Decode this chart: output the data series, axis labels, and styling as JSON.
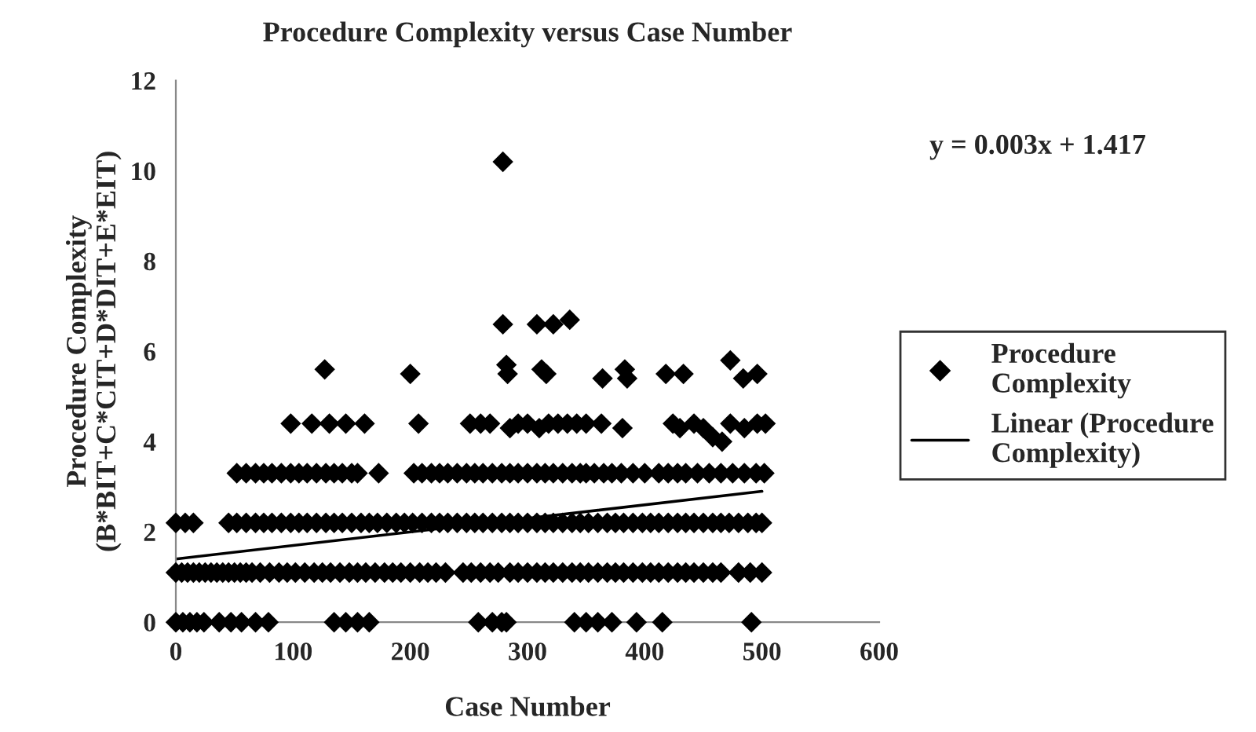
{
  "chart_data": {
    "type": "scatter",
    "title": "Procedure Complexity versus Case Number",
    "xlabel": "Case Number",
    "ylabel": "Procedure Complexity\n(B*BIT+C*CIT+D*DIT+E*EIT)",
    "xlim": [
      0,
      600
    ],
    "xticks": [
      0,
      100,
      200,
      300,
      400,
      500,
      600
    ],
    "ylim": [
      0,
      12
    ],
    "yticks": [
      0,
      2,
      4,
      6,
      8,
      10,
      12
    ],
    "grid": false,
    "legend": "right",
    "annotations": [
      "y = 0.003x + 1.417"
    ],
    "series": [
      {
        "name": "Procedure Complexity",
        "color": "#000000",
        "marker": "diamond",
        "x": [
          0,
          6,
          12,
          18,
          24,
          37,
          47,
          56,
          68,
          79,
          135,
          145,
          155,
          165,
          258,
          270,
          278,
          282,
          340,
          350,
          360,
          372,
          393,
          415,
          491,
          0,
          5,
          10,
          15,
          20,
          25,
          30,
          35,
          40,
          45,
          50,
          55,
          60,
          65,
          72,
          80,
          88,
          95,
          102,
          110,
          118,
          125,
          132,
          140,
          148,
          155,
          162,
          170,
          178,
          185,
          192,
          200,
          208,
          215,
          222,
          230,
          245,
          252,
          260,
          268,
          275,
          285,
          292,
          300,
          308,
          315,
          322,
          330,
          338,
          345,
          352,
          360,
          368,
          375,
          382,
          390,
          398,
          405,
          412,
          420,
          428,
          435,
          442,
          450,
          458,
          465,
          480,
          490,
          500,
          0,
          8,
          15,
          45,
          52,
          60,
          68,
          75,
          82,
          90,
          98,
          105,
          112,
          120,
          128,
          135,
          142,
          150,
          158,
          165,
          172,
          180,
          188,
          195,
          202,
          210,
          218,
          225,
          232,
          240,
          248,
          255,
          262,
          270,
          278,
          285,
          292,
          300,
          308,
          315,
          322,
          330,
          338,
          345,
          352,
          360,
          368,
          375,
          382,
          390,
          398,
          405,
          412,
          420,
          428,
          435,
          442,
          450,
          458,
          465,
          472,
          480,
          488,
          495,
          500,
          52,
          60,
          68,
          75,
          82,
          90,
          98,
          105,
          112,
          120,
          128,
          135,
          142,
          150,
          155,
          173,
          203,
          210,
          218,
          225,
          232,
          240,
          248,
          255,
          262,
          270,
          278,
          285,
          292,
          300,
          308,
          315,
          322,
          330,
          338,
          345,
          350,
          357,
          365,
          372,
          380,
          390,
          400,
          412,
          420,
          428,
          435,
          445,
          455,
          465,
          475,
          485,
          495,
          502,
          98,
          116,
          131,
          145,
          161,
          207,
          251,
          260,
          268,
          285,
          292,
          300,
          310,
          318,
          326,
          334,
          342,
          350,
          363,
          381,
          424,
          430,
          442,
          450,
          458,
          466,
          473,
          485,
          496,
          503,
          127,
          200,
          282,
          283,
          312,
          316,
          364,
          383,
          385,
          418,
          433,
          473,
          484,
          496,
          279,
          308,
          322,
          336,
          279
        ],
        "values": [
          0,
          0,
          0,
          0,
          0,
          0,
          0,
          0,
          0,
          0,
          0,
          0,
          0,
          0,
          0,
          0,
          0,
          0,
          0,
          0,
          0,
          0,
          0,
          0,
          0,
          1.1,
          1.1,
          1.1,
          1.1,
          1.1,
          1.1,
          1.1,
          1.1,
          1.1,
          1.1,
          1.1,
          1.1,
          1.1,
          1.1,
          1.1,
          1.1,
          1.1,
          1.1,
          1.1,
          1.1,
          1.1,
          1.1,
          1.1,
          1.1,
          1.1,
          1.1,
          1.1,
          1.1,
          1.1,
          1.1,
          1.1,
          1.1,
          1.1,
          1.1,
          1.1,
          1.1,
          1.1,
          1.1,
          1.1,
          1.1,
          1.1,
          1.1,
          1.1,
          1.1,
          1.1,
          1.1,
          1.1,
          1.1,
          1.1,
          1.1,
          1.1,
          1.1,
          1.1,
          1.1,
          1.1,
          1.1,
          1.1,
          1.1,
          1.1,
          1.1,
          1.1,
          1.1,
          1.1,
          1.1,
          1.1,
          1.1,
          1.1,
          1.1,
          1.1,
          2.2,
          2.2,
          2.2,
          2.2,
          2.2,
          2.2,
          2.2,
          2.2,
          2.2,
          2.2,
          2.2,
          2.2,
          2.2,
          2.2,
          2.2,
          2.2,
          2.2,
          2.2,
          2.2,
          2.2,
          2.2,
          2.2,
          2.2,
          2.2,
          2.2,
          2.2,
          2.2,
          2.2,
          2.2,
          2.2,
          2.2,
          2.2,
          2.2,
          2.2,
          2.2,
          2.2,
          2.2,
          2.2,
          2.2,
          2.2,
          2.2,
          2.2,
          2.2,
          2.2,
          2.2,
          2.2,
          2.2,
          2.2,
          2.2,
          2.2,
          2.2,
          2.2,
          2.2,
          2.2,
          2.2,
          2.2,
          2.2,
          2.2,
          2.2,
          2.2,
          2.2,
          2.2,
          2.2,
          2.2,
          2.2,
          3.3,
          3.3,
          3.3,
          3.3,
          3.3,
          3.3,
          3.3,
          3.3,
          3.3,
          3.3,
          3.3,
          3.3,
          3.3,
          3.3,
          3.3,
          3.3,
          3.3,
          3.3,
          3.3,
          3.3,
          3.3,
          3.3,
          3.3,
          3.3,
          3.3,
          3.3,
          3.3,
          3.3,
          3.3,
          3.3,
          3.3,
          3.3,
          3.3,
          3.3,
          3.3,
          3.3,
          3.3,
          3.3,
          3.3,
          3.3,
          3.3,
          3.3,
          3.3,
          3.3,
          3.3,
          3.3,
          3.3,
          3.3,
          3.3,
          3.3,
          3.3,
          3.3,
          3.3,
          3.3,
          4.4,
          4.4,
          4.4,
          4.4,
          4.4,
          4.4,
          4.4,
          4.4,
          4.4,
          4.3,
          4.4,
          4.4,
          4.3,
          4.4,
          4.4,
          4.4,
          4.4,
          4.4,
          4.4,
          4.3,
          4.4,
          4.3,
          4.4,
          4.3,
          4.1,
          4.0,
          4.4,
          4.3,
          4.4,
          4.4,
          5.6,
          5.5,
          5.7,
          5.5,
          5.6,
          5.5,
          5.4,
          5.6,
          5.4,
          5.5,
          5.5,
          5.8,
          5.4,
          5.5,
          6.6,
          6.6,
          6.6,
          6.7,
          10.2
        ]
      },
      {
        "name": "Linear (Procedure Complexity)",
        "color": "#000000",
        "type": "line",
        "line_style": "solid",
        "x": [
          0,
          500
        ],
        "values": [
          1.4,
          2.9
        ]
      }
    ]
  }
}
